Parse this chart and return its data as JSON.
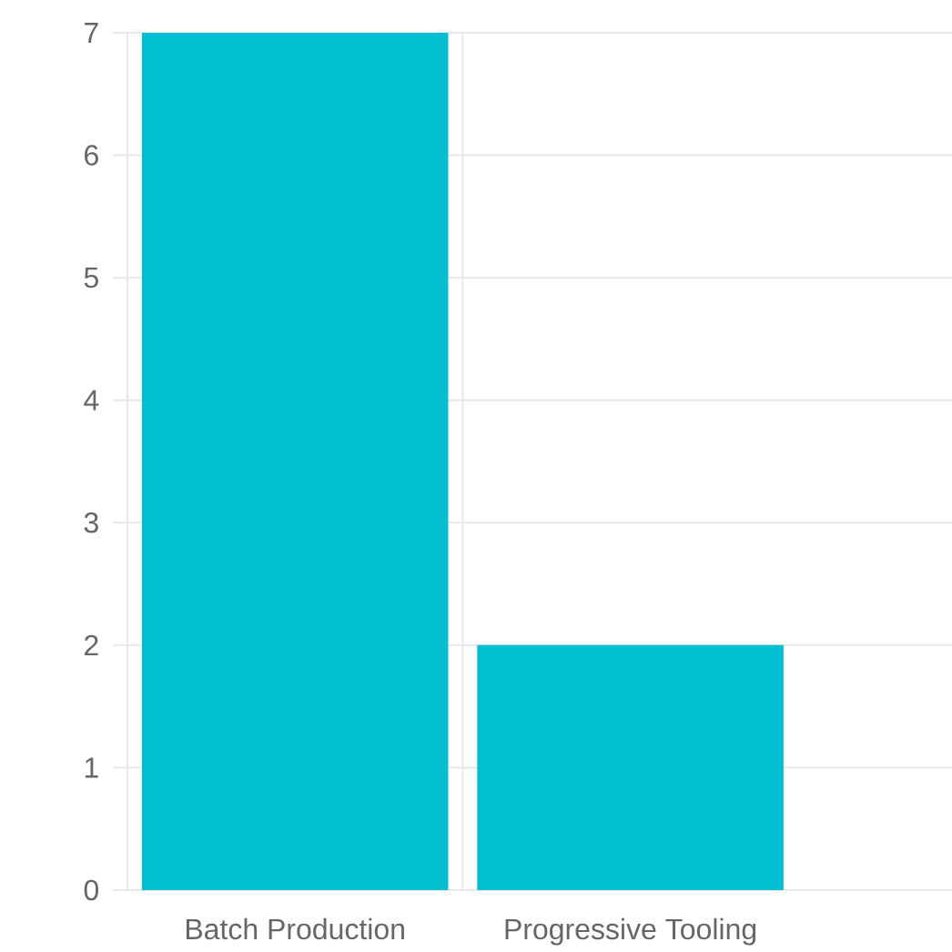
{
  "chart_data": {
    "type": "bar",
    "categories": [
      "Batch Production",
      "Progressive Tooling"
    ],
    "values": [
      7,
      2
    ],
    "color": "#00bfd0",
    "ylim": [
      0,
      7
    ],
    "yticks": [
      0,
      1,
      2,
      3,
      4,
      5,
      6,
      7
    ],
    "grid": true
  }
}
